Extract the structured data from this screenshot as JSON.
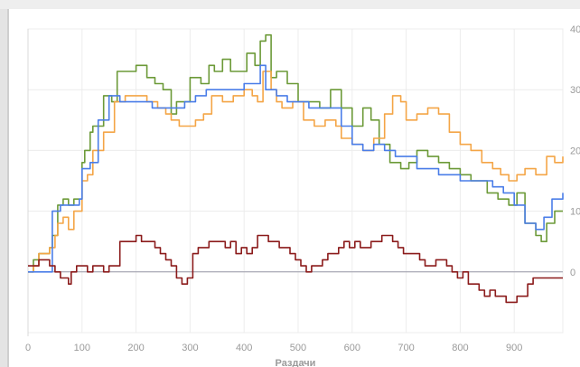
{
  "chart_data": {
    "type": "line",
    "title": "",
    "xlabel": "Раздачи",
    "ylabel": "",
    "xlim": [
      0,
      990
    ],
    "ylim": [
      -10,
      40
    ],
    "x_ticks": [
      0,
      100,
      200,
      300,
      400,
      500,
      600,
      700,
      800,
      900
    ],
    "y_ticks": [
      0,
      10,
      20,
      30,
      40
    ],
    "grid": true,
    "legend": "none",
    "colors": {
      "green": "#6c9a38",
      "orange": "#f4a546",
      "blue": "#4a7de8",
      "darkred": "#8b1b1b",
      "zero": "#9a9aa8",
      "grid": "#ececec"
    },
    "series": [
      {
        "key": "green",
        "x": [
          0,
          10,
          20,
          30,
          40,
          45,
          55,
          65,
          75,
          85,
          100,
          105,
          115,
          120,
          140,
          155,
          165,
          180,
          200,
          220,
          235,
          250,
          265,
          275,
          290,
          300,
          320,
          335,
          345,
          360,
          375,
          390,
          405,
          420,
          430,
          440,
          450,
          460,
          480,
          500,
          520,
          540,
          560,
          580,
          600,
          620,
          635,
          650,
          670,
          690,
          705,
          720,
          740,
          760,
          780,
          800,
          820,
          835,
          850,
          870,
          890,
          905,
          920,
          940,
          950,
          960,
          975,
          990
        ],
        "y": [
          0,
          2,
          3,
          3,
          4,
          6,
          11,
          12,
          11,
          12,
          18,
          20,
          23,
          24,
          29,
          28,
          33,
          33,
          34,
          32,
          31,
          30,
          26,
          28,
          28,
          32,
          31,
          34,
          33,
          35,
          33,
          33,
          36,
          34,
          38,
          39,
          32,
          33,
          31,
          28,
          28,
          27,
          30,
          27,
          24,
          27,
          25,
          21,
          18,
          17,
          18,
          20,
          19,
          18,
          17,
          16,
          15,
          15,
          13,
          12,
          11,
          13,
          8,
          6,
          5,
          8,
          10,
          10
        ]
      },
      {
        "key": "orange",
        "x": [
          0,
          10,
          20,
          30,
          40,
          50,
          55,
          65,
          75,
          85,
          100,
          110,
          120,
          140,
          160,
          180,
          200,
          220,
          240,
          255,
          265,
          280,
          295,
          310,
          325,
          340,
          360,
          380,
          400,
          415,
          425,
          435,
          450,
          460,
          470,
          490,
          510,
          530,
          550,
          570,
          580,
          600,
          620,
          640,
          660,
          675,
          690,
          700,
          720,
          740,
          760,
          780,
          800,
          820,
          840,
          860,
          875,
          890,
          905,
          920,
          940,
          960,
          975,
          990
        ],
        "y": [
          0,
          1,
          3,
          3,
          4,
          6,
          8,
          9,
          7,
          10,
          15,
          16,
          20,
          23,
          28,
          29,
          29,
          28,
          27,
          26,
          25,
          24,
          24,
          25,
          26,
          29,
          28,
          29,
          30,
          29,
          28,
          33,
          30,
          28,
          27,
          28,
          25,
          24,
          25,
          24,
          22,
          21,
          20,
          22,
          26,
          29,
          28,
          25,
          26,
          27,
          26,
          23,
          21,
          20,
          18,
          17,
          16,
          15,
          16,
          17,
          16,
          19,
          18,
          19
        ]
      },
      {
        "key": "blue",
        "x": [
          0,
          35,
          45,
          60,
          75,
          95,
          100,
          115,
          130,
          150,
          170,
          200,
          230,
          250,
          270,
          290,
          310,
          330,
          350,
          380,
          400,
          420,
          430,
          440,
          460,
          480,
          500,
          520,
          540,
          560,
          580,
          600,
          620,
          640,
          660,
          680,
          700,
          720,
          740,
          760,
          780,
          800,
          820,
          840,
          860,
          880,
          900,
          920,
          940,
          955,
          970,
          990
        ],
        "y": [
          0,
          0,
          10,
          11,
          11,
          12,
          17,
          18,
          25,
          29,
          28,
          28,
          27,
          27,
          27,
          28,
          29,
          30,
          30,
          30,
          31,
          31,
          34,
          30,
          29,
          28,
          28,
          27,
          27,
          27,
          24,
          21,
          20,
          21,
          20,
          19,
          19,
          17,
          17,
          16,
          16,
          15,
          15,
          15,
          14,
          13,
          11,
          8,
          7,
          9,
          12,
          13
        ]
      },
      {
        "key": "darkred",
        "x": [
          0,
          10,
          20,
          30,
          40,
          50,
          60,
          70,
          75,
          80,
          90,
          100,
          110,
          120,
          130,
          140,
          150,
          170,
          190,
          200,
          210,
          225,
          235,
          245,
          255,
          265,
          275,
          285,
          295,
          305,
          315,
          325,
          335,
          345,
          355,
          365,
          375,
          385,
          395,
          405,
          415,
          425,
          435,
          445,
          455,
          465,
          475,
          485,
          495,
          505,
          515,
          525,
          535,
          545,
          555,
          565,
          575,
          585,
          595,
          605,
          615,
          625,
          635,
          645,
          655,
          665,
          675,
          685,
          695,
          705,
          715,
          725,
          735,
          745,
          755,
          765,
          775,
          785,
          795,
          805,
          815,
          825,
          835,
          845,
          855,
          865,
          875,
          885,
          895,
          905,
          915,
          925,
          935,
          945,
          955,
          965,
          975,
          990
        ],
        "y": [
          1,
          1,
          2,
          2,
          1,
          0,
          -1,
          -1,
          -2,
          0,
          1,
          1,
          0,
          1,
          1,
          0,
          1,
          5,
          5,
          6,
          5,
          5,
          4,
          3,
          2,
          1,
          -1,
          -2,
          -1,
          3,
          4,
          4,
          5,
          5,
          5,
          4,
          5,
          3,
          4,
          3,
          4,
          6,
          6,
          5,
          5,
          4,
          4,
          3,
          2,
          1,
          0,
          1,
          1,
          2,
          3,
          3,
          4,
          5,
          4,
          5,
          4,
          4,
          5,
          5,
          6,
          6,
          5,
          4,
          3,
          3,
          3,
          2,
          1,
          1,
          2,
          2,
          1,
          0,
          -1,
          0,
          -2,
          -2,
          -3,
          -4,
          -3,
          -4,
          -4,
          -5,
          -5,
          -4,
          -4,
          -2,
          -1,
          -1,
          -1,
          -1,
          -1,
          -1
        ]
      }
    ]
  }
}
